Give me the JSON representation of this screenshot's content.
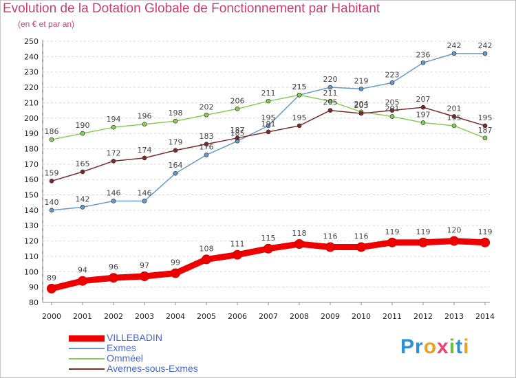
{
  "title": "Evolution de la Dotation Globale de Fonctionnement par Habitant",
  "subtitle": "(en € et par an)",
  "logo": "Proxiti",
  "chart_data": {
    "type": "line",
    "title": "Evolution de la Dotation Globale de Fonctionnement par Habitant",
    "subtitle": "(en € et par an)",
    "xlabel": "",
    "ylabel": "",
    "x": [
      "2000",
      "2001",
      "2002",
      "2003",
      "2004",
      "2005",
      "2006",
      "2007",
      "2008",
      "2009",
      "2010",
      "2011",
      "2012",
      "2013",
      "2014"
    ],
    "ylim": [
      80,
      250
    ],
    "yticks": [
      80,
      90,
      100,
      110,
      120,
      130,
      140,
      150,
      160,
      170,
      180,
      190,
      200,
      210,
      220,
      230,
      240,
      250
    ],
    "grid": "horizontal dashed",
    "legend": "bottom-left",
    "series": [
      {
        "name": "VILLEBADIN",
        "color": "#ee0000",
        "values": [
          89,
          94,
          96,
          97,
          99,
          108,
          111,
          115,
          118,
          116,
          116,
          119,
          119,
          120,
          119
        ]
      },
      {
        "name": "Exmes",
        "color": "#6699cc",
        "values": [
          140,
          142,
          146,
          146,
          164,
          176,
          185,
          195,
          215,
          220,
          219,
          223,
          236,
          242,
          242
        ]
      },
      {
        "name": "Omméel",
        "color": "#88cc55",
        "values": [
          186,
          190,
          194,
          196,
          198,
          202,
          206,
          211,
          215,
          211,
          204,
          201,
          197,
          195,
          187
        ]
      },
      {
        "name": "Avernes-sous-Exmes",
        "color": "#7a2a2a",
        "values": [
          159,
          165,
          172,
          174,
          179,
          183,
          187,
          191,
          195,
          205,
          203,
          205,
          207,
          201,
          195
        ]
      }
    ]
  }
}
